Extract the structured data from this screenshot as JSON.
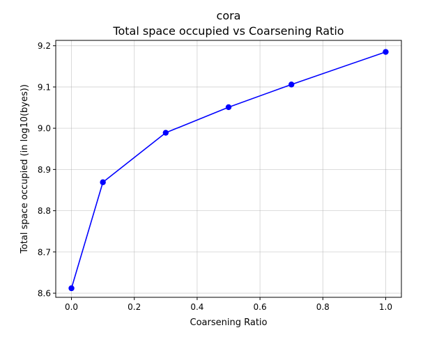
{
  "chart_data": {
    "type": "line",
    "title": "cora",
    "subtitle": "Total space occupied vs Coarsening Ratio",
    "xlabel": "Coarsening Ratio",
    "ylabel": "Total space occupied (in log10(byes))",
    "xlim": [
      -0.05,
      1.05
    ],
    "ylim": [
      8.59,
      9.213
    ],
    "xticks": [
      0.0,
      0.2,
      0.4,
      0.6,
      0.8,
      1.0
    ],
    "xtick_labels": [
      "0.0",
      "0.2",
      "0.4",
      "0.6",
      "0.8",
      "1.0"
    ],
    "yticks": [
      8.6,
      8.7,
      8.8,
      8.9,
      9.0,
      9.1,
      9.2
    ],
    "ytick_labels": [
      "8.6",
      "8.7",
      "8.8",
      "8.9",
      "9.0",
      "9.1",
      "9.2"
    ],
    "grid": true,
    "series": [
      {
        "color": "#0000ff",
        "marker": "circle",
        "x": [
          0.0,
          0.1,
          0.3,
          0.5,
          0.7,
          1.0
        ],
        "y": [
          8.612,
          8.869,
          8.989,
          9.051,
          9.106,
          9.185
        ]
      }
    ]
  }
}
